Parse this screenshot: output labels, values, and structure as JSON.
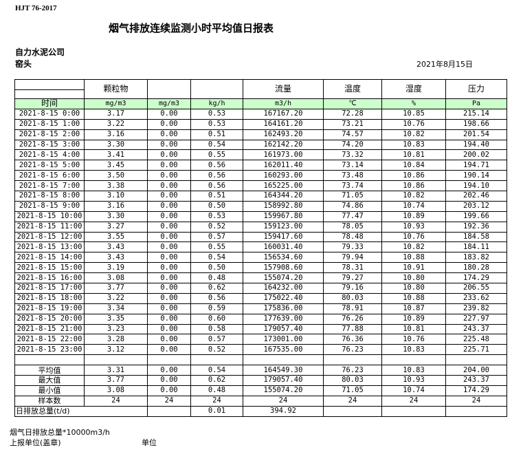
{
  "standard": "HJT  76-2017",
  "title": "烟气排放连续监测小时平均值日报表",
  "company": "自力水泥公司",
  "site": "窑头",
  "date": "2021年8月15日",
  "headers": [
    "",
    "颗粒物",
    "",
    "",
    "流量",
    "温度",
    "湿度",
    "压力"
  ],
  "units": [
    "时间",
    "mg/m3",
    "mg/m3",
    "kg/h",
    "m3/h",
    "℃",
    "%",
    "Pa"
  ],
  "rows": [
    [
      "2021-8-15 0:00",
      "3.17",
      "0.00",
      "0.53",
      "167167.20",
      "72.28",
      "10.85",
      "215.14"
    ],
    [
      "2021-8-15 1:00",
      "3.22",
      "0.00",
      "0.53",
      "164161.20",
      "73.21",
      "10.76",
      "198.66"
    ],
    [
      "2021-8-15 2:00",
      "3.16",
      "0.00",
      "0.51",
      "162493.20",
      "74.57",
      "10.82",
      "201.54"
    ],
    [
      "2021-8-15 3:00",
      "3.30",
      "0.00",
      "0.54",
      "162142.20",
      "74.20",
      "10.83",
      "194.40"
    ],
    [
      "2021-8-15 4:00",
      "3.41",
      "0.00",
      "0.55",
      "161973.00",
      "73.32",
      "10.81",
      "200.02"
    ],
    [
      "2021-8-15 5:00",
      "3.45",
      "0.00",
      "0.56",
      "162011.40",
      "73.14",
      "10.84",
      "194.71"
    ],
    [
      "2021-8-15 6:00",
      "3.50",
      "0.00",
      "0.56",
      "160293.00",
      "73.48",
      "10.86",
      "190.14"
    ],
    [
      "2021-8-15 7:00",
      "3.38",
      "0.00",
      "0.56",
      "165225.00",
      "73.74",
      "10.86",
      "194.10"
    ],
    [
      "2021-8-15 8:00",
      "3.10",
      "0.00",
      "0.51",
      "164344.20",
      "71.05",
      "10.82",
      "202.46"
    ],
    [
      "2021-8-15 9:00",
      "3.16",
      "0.00",
      "0.50",
      "158992.80",
      "74.86",
      "10.74",
      "203.12"
    ],
    [
      "2021-8-15 10:00",
      "3.30",
      "0.00",
      "0.53",
      "159967.80",
      "77.47",
      "10.89",
      "199.66"
    ],
    [
      "2021-8-15 11:00",
      "3.27",
      "0.00",
      "0.52",
      "159123.00",
      "78.05",
      "10.93",
      "192.36"
    ],
    [
      "2021-8-15 12:00",
      "3.55",
      "0.00",
      "0.57",
      "159417.60",
      "78.48",
      "10.76",
      "184.58"
    ],
    [
      "2021-8-15 13:00",
      "3.43",
      "0.00",
      "0.55",
      "160031.40",
      "79.33",
      "10.82",
      "184.11"
    ],
    [
      "2021-8-15 14:00",
      "3.43",
      "0.00",
      "0.54",
      "156534.60",
      "79.94",
      "10.88",
      "183.82"
    ],
    [
      "2021-8-15 15:00",
      "3.19",
      "0.00",
      "0.50",
      "157908.60",
      "78.31",
      "10.91",
      "180.28"
    ],
    [
      "2021-8-15 16:00",
      "3.08",
      "0.00",
      "0.48",
      "155074.20",
      "79.27",
      "10.80",
      "174.29"
    ],
    [
      "2021-8-15 17:00",
      "3.77",
      "0.00",
      "0.62",
      "164232.00",
      "79.16",
      "10.80",
      "206.55"
    ],
    [
      "2021-8-15 18:00",
      "3.22",
      "0.00",
      "0.56",
      "175022.40",
      "80.03",
      "10.88",
      "233.62"
    ],
    [
      "2021-8-15 19:00",
      "3.34",
      "0.00",
      "0.59",
      "175836.00",
      "78.91",
      "10.87",
      "239.82"
    ],
    [
      "2021-8-15 20:00",
      "3.35",
      "0.00",
      "0.60",
      "177639.00",
      "76.26",
      "10.89",
      "227.97"
    ],
    [
      "2021-8-15 21:00",
      "3.23",
      "0.00",
      "0.58",
      "179057.40",
      "77.88",
      "10.81",
      "243.37"
    ],
    [
      "2021-8-15 22:00",
      "3.28",
      "0.00",
      "0.57",
      "173001.00",
      "76.36",
      "10.76",
      "225.48"
    ],
    [
      "2021-8-15 23:00",
      "3.12",
      "0.00",
      "0.52",
      "167535.00",
      "76.23",
      "10.83",
      "225.71"
    ]
  ],
  "summary": [
    [
      "平均值",
      "3.31",
      "0.00",
      "0.54",
      "164549.30",
      "76.23",
      "10.83",
      "204.00"
    ],
    [
      "最大值",
      "3.77",
      "0.00",
      "0.62",
      "179057.40",
      "80.03",
      "10.93",
      "243.37"
    ],
    [
      "最小值",
      "3.08",
      "0.00",
      "0.48",
      "155074.20",
      "71.05",
      "10.74",
      "174.29"
    ],
    [
      "样本数",
      "24",
      "24",
      "24",
      "24",
      "24",
      "24",
      "24"
    ]
  ],
  "daily_total": {
    "label": "日排放总量(t/d)",
    "kg": "0.01",
    "flow": "394.92"
  },
  "notes": {
    "flue_total": "烟气日排放总量*10000m3/h",
    "reporter": "上报单位(盖章)",
    "unit": "单位"
  }
}
